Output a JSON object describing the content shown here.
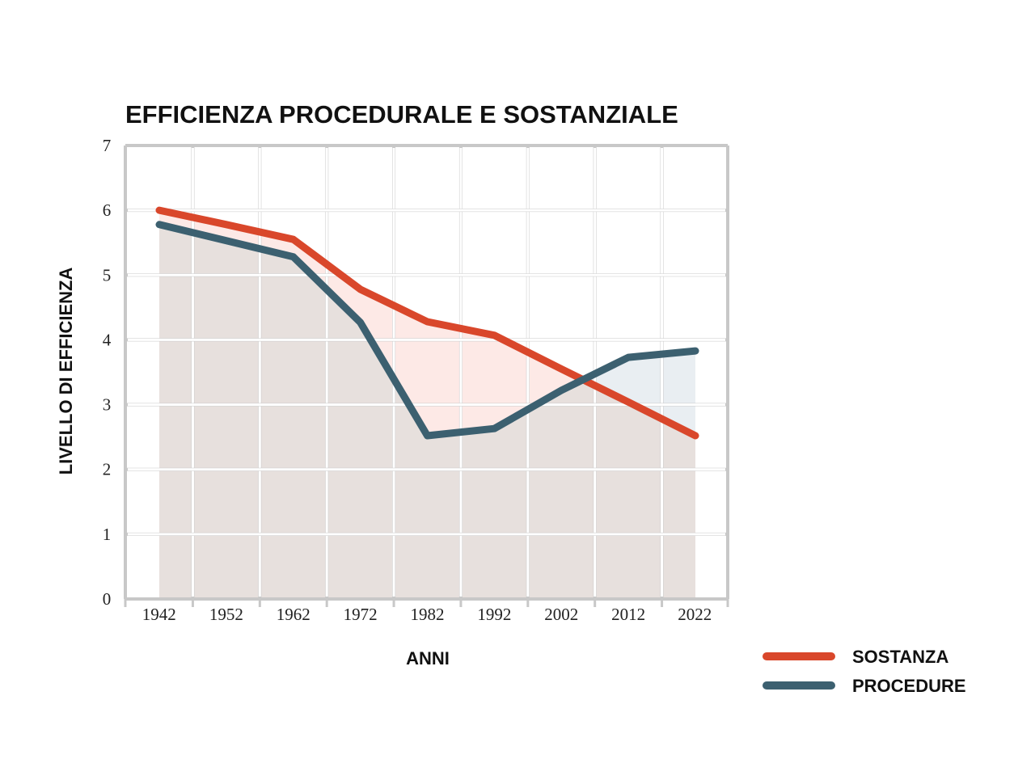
{
  "chart_data": {
    "type": "line",
    "title": "EFFICIENZA PROCEDURALE E SOSTANZIALE",
    "xlabel": "ANNI",
    "ylabel": "LIVELLO DI EFFICIENZA",
    "x": [
      "1942",
      "1952",
      "1962",
      "1972",
      "1982",
      "1992",
      "2002",
      "2012",
      "2022"
    ],
    "yticks": [
      "0",
      "1",
      "2",
      "3",
      "4",
      "5",
      "6",
      "7"
    ],
    "ylim": [
      0,
      7
    ],
    "grid": true,
    "legend_position": "bottom-right",
    "series": [
      {
        "name": "SOSTANZA",
        "color": "#d9472b",
        "values": [
          6.0,
          5.78,
          5.55,
          4.78,
          4.28,
          4.07,
          3.55,
          3.04,
          2.52
        ]
      },
      {
        "name": "PROCEDURE",
        "color": "#3c6070",
        "values": [
          5.78,
          5.53,
          5.28,
          4.27,
          2.52,
          2.63,
          3.22,
          3.73,
          3.83
        ]
      }
    ],
    "colors": {
      "grid": "#c8c8c8",
      "gridInner": "#ffffff",
      "fill_common": "#e7e0dd",
      "fill_sostanza_above": "#fde9e6",
      "fill_procedure_above": "#e9eef2"
    }
  }
}
